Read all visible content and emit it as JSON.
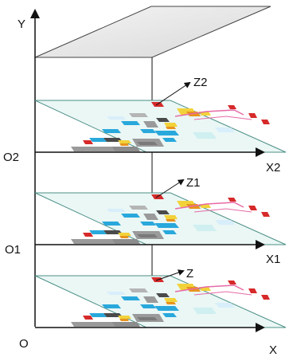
{
  "diagram": {
    "axis_labels": {
      "y": "Y",
      "origins": [
        "O",
        "O1",
        "O2"
      ],
      "x_axes": [
        "X",
        "X1",
        "X2"
      ],
      "z_axes": [
        "Z",
        "Z1",
        "Z2"
      ]
    },
    "layer_count": 3,
    "colors": {
      "plane_fill": "#eaf7f5",
      "plane_edge": "#4c8f86",
      "gray_block": "#9a9a9a",
      "blue_block": "#29a8dc",
      "yellow_block": "#f2d23a",
      "orange_block": "#e8931d",
      "red_mark": "#d62a2a",
      "pink_path": "#e66aa6",
      "top_plane": "#e6e6e6"
    }
  }
}
